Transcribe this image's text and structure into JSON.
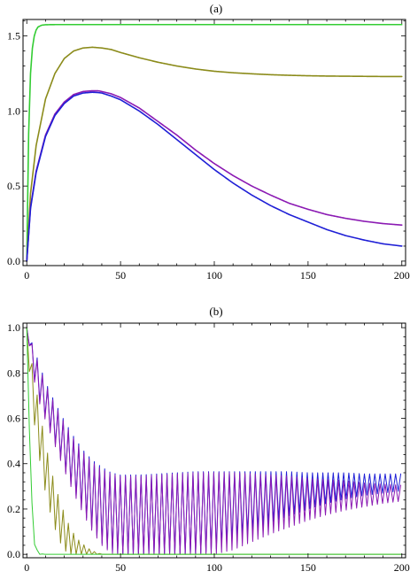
{
  "chart_data": [
    {
      "type": "line",
      "panel_label": "(a)",
      "title": "",
      "xlabel": "",
      "ylabel": "",
      "xlim": [
        -2,
        202
      ],
      "ylim": [
        -0.03,
        1.61
      ],
      "xticks": [
        0,
        50,
        100,
        150,
        200
      ],
      "yticks": [
        0.0,
        0.5,
        1.0,
        1.5
      ],
      "xtick_labels": [
        "0",
        "50",
        "100",
        "150",
        "200"
      ],
      "ytick_labels": [
        "0.0",
        "0.5",
        "1.0",
        "1.5"
      ],
      "grid": false,
      "legend": "none",
      "series": [
        {
          "color": "#33cc33",
          "x": [
            0,
            1,
            2,
            3,
            4,
            5,
            6,
            8,
            10,
            15,
            20,
            50,
            100,
            150,
            200
          ],
          "y": [
            0.0,
            0.85,
            1.25,
            1.42,
            1.5,
            1.54,
            1.56,
            1.572,
            1.575,
            1.576,
            1.576,
            1.576,
            1.576,
            1.576,
            1.576
          ]
        },
        {
          "color": "#8b8b1a",
          "x": [
            0,
            2,
            5,
            10,
            15,
            20,
            25,
            30,
            35,
            40,
            45,
            50,
            60,
            70,
            80,
            90,
            100,
            110,
            120,
            130,
            140,
            150,
            160,
            170,
            180,
            190,
            200
          ],
          "y": [
            0.0,
            0.45,
            0.77,
            1.08,
            1.25,
            1.35,
            1.4,
            1.42,
            1.425,
            1.42,
            1.41,
            1.39,
            1.355,
            1.325,
            1.3,
            1.28,
            1.265,
            1.255,
            1.248,
            1.242,
            1.238,
            1.235,
            1.233,
            1.232,
            1.231,
            1.23,
            1.23
          ]
        },
        {
          "color": "#8b1ab3",
          "x": [
            0,
            2,
            5,
            10,
            15,
            20,
            25,
            30,
            35,
            38,
            40,
            45,
            50,
            60,
            70,
            80,
            90,
            100,
            110,
            120,
            130,
            140,
            150,
            160,
            170,
            180,
            190,
            200
          ],
          "y": [
            0.0,
            0.36,
            0.6,
            0.84,
            0.98,
            1.06,
            1.11,
            1.13,
            1.135,
            1.135,
            1.13,
            1.115,
            1.09,
            1.02,
            0.93,
            0.84,
            0.74,
            0.65,
            0.57,
            0.5,
            0.44,
            0.385,
            0.345,
            0.31,
            0.285,
            0.265,
            0.25,
            0.24
          ]
        },
        {
          "color": "#1f1fd6",
          "x": [
            0,
            2,
            5,
            10,
            15,
            20,
            25,
            30,
            35,
            38,
            40,
            45,
            50,
            60,
            70,
            80,
            90,
            100,
            110,
            120,
            130,
            140,
            150,
            160,
            170,
            180,
            190,
            200
          ],
          "y": [
            0.0,
            0.35,
            0.59,
            0.83,
            0.97,
            1.05,
            1.1,
            1.12,
            1.125,
            1.123,
            1.12,
            1.1,
            1.075,
            1.0,
            0.91,
            0.81,
            0.71,
            0.61,
            0.52,
            0.44,
            0.37,
            0.31,
            0.26,
            0.21,
            0.17,
            0.14,
            0.115,
            0.1
          ]
        }
      ]
    },
    {
      "type": "line",
      "panel_label": "(b)",
      "title": "",
      "xlabel": "",
      "ylabel": "",
      "xlim": [
        -2,
        202
      ],
      "ylim": [
        -0.015,
        1.02
      ],
      "xticks": [
        0,
        50,
        100,
        150,
        200
      ],
      "yticks": [
        0.0,
        0.2,
        0.4,
        0.6,
        0.8,
        1.0
      ],
      "xtick_labels": [
        "0",
        "50",
        "100",
        "150",
        "200"
      ],
      "ytick_labels": [
        "0.0",
        "0.2",
        "0.4",
        "0.6",
        "0.8",
        "1.0"
      ],
      "grid": false,
      "legend": "none",
      "oscillation_period": 2.77,
      "series": [
        {
          "color": "#1f1fd6",
          "x": [
            0,
            5,
            10,
            15,
            20,
            25,
            30,
            35,
            40,
            45,
            50,
            60,
            70,
            80,
            90,
            100,
            110,
            120,
            130,
            140,
            150,
            160,
            170,
            180,
            190,
            200
          ],
          "upper": [
            1.0,
            0.88,
            0.76,
            0.67,
            0.59,
            0.52,
            0.46,
            0.415,
            0.385,
            0.36,
            0.35,
            0.35,
            0.355,
            0.36,
            0.365,
            0.365,
            0.365,
            0.365,
            0.365,
            0.365,
            0.36,
            0.36,
            0.36,
            0.355,
            0.355,
            0.355
          ],
          "lower": [
            1.0,
            0.72,
            0.6,
            0.49,
            0.38,
            0.28,
            0.19,
            0.11,
            0.05,
            0.01,
            0.0,
            0.0,
            0.0,
            0.0,
            0.0,
            0.02,
            0.06,
            0.1,
            0.14,
            0.17,
            0.2,
            0.225,
            0.245,
            0.26,
            0.27,
            0.28
          ]
        },
        {
          "color": "#8b1ab3",
          "x": [
            0,
            5,
            10,
            15,
            20,
            25,
            30,
            35,
            40,
            45,
            50,
            60,
            70,
            80,
            90,
            100,
            110,
            120,
            130,
            140,
            150,
            160,
            170,
            180,
            190,
            200
          ],
          "upper": [
            1.0,
            0.87,
            0.75,
            0.66,
            0.58,
            0.51,
            0.45,
            0.405,
            0.375,
            0.355,
            0.345,
            0.345,
            0.35,
            0.355,
            0.36,
            0.36,
            0.36,
            0.355,
            0.35,
            0.345,
            0.335,
            0.33,
            0.325,
            0.315,
            0.31,
            0.305
          ],
          "lower": [
            1.0,
            0.71,
            0.59,
            0.48,
            0.37,
            0.27,
            0.18,
            0.1,
            0.04,
            0.005,
            0.0,
            0.0,
            0.0,
            0.0,
            0.0,
            0.0,
            0.02,
            0.055,
            0.09,
            0.12,
            0.15,
            0.175,
            0.195,
            0.21,
            0.225,
            0.235
          ]
        },
        {
          "color": "#8b8b1a",
          "x": [
            0,
            2,
            4,
            6,
            8,
            10,
            12,
            14,
            16,
            18,
            20,
            22,
            24,
            26,
            28,
            30,
            32,
            34,
            36,
            38,
            40,
            45,
            50,
            100,
            150,
            200
          ],
          "upper": [
            1.0,
            0.88,
            0.78,
            0.68,
            0.58,
            0.49,
            0.41,
            0.34,
            0.28,
            0.23,
            0.18,
            0.14,
            0.105,
            0.08,
            0.06,
            0.045,
            0.032,
            0.02,
            0.012,
            0.006,
            0.0,
            0.0,
            0.0,
            0.0,
            0.0,
            0.0
          ],
          "lower": [
            1.0,
            0.72,
            0.58,
            0.46,
            0.36,
            0.27,
            0.2,
            0.14,
            0.09,
            0.05,
            0.02,
            0.005,
            0.0,
            0.0,
            0.0,
            0.0,
            0.0,
            0.0,
            0.0,
            0.0,
            0.0,
            0.0,
            0.0,
            0.0,
            0.0,
            0.0
          ]
        },
        {
          "color": "#33cc33",
          "x": [
            0,
            0.5,
            1,
            1.5,
            2,
            2.5,
            3,
            3.5,
            4,
            5,
            6,
            8,
            10,
            50,
            100,
            150,
            200
          ],
          "upper": [
            1.0,
            0.92,
            0.8,
            0.62,
            0.42,
            0.26,
            0.2,
            0.16,
            0.1,
            0.03,
            0.01,
            0.002,
            0.0,
            0.0,
            0.0,
            0.0,
            0.0
          ],
          "lower": [
            1.0,
            0.9,
            0.72,
            0.5,
            0.3,
            0.2,
            0.16,
            0.1,
            0.05,
            0.01,
            0.0,
            0.0,
            0.0,
            0.0,
            0.0,
            0.0,
            0.0
          ]
        }
      ]
    }
  ]
}
